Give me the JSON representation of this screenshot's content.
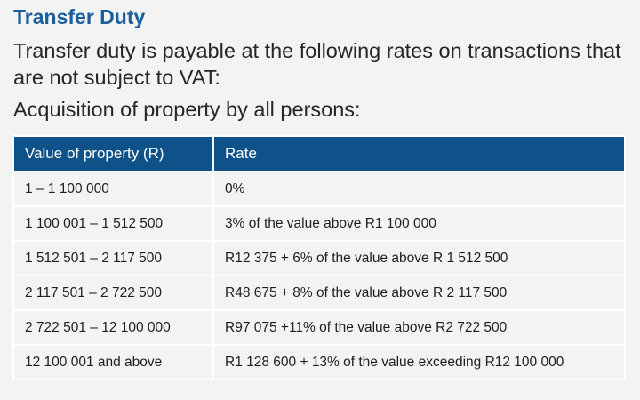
{
  "heading": "Transfer Duty",
  "intro": "Transfer duty is payable at the following rates on transactions that are not subject to VAT:",
  "subheading": "Acquisition of property by all persons:",
  "table": {
    "headers": [
      "Value of property (R)",
      "Rate"
    ],
    "rows": [
      [
        "1 – 1 100 000",
        "0%"
      ],
      [
        "1 100 001 – 1 512 500",
        "3% of the value above R1 100 000"
      ],
      [
        "1 512 501 – 2 117 500",
        "R12 375 + 6% of the value above R 1 512 500"
      ],
      [
        "2 117 501 – 2 722 500",
        "R48 675 + 8% of the value above R 2 117 500"
      ],
      [
        "2 722 501 – 12 100 000",
        "R97 075 +11% of the value above R2 722 500"
      ],
      [
        "12 100 001 and above",
        "R1 128 600 + 13% of the value exceeding R12 100 000"
      ]
    ]
  },
  "colors": {
    "heading": "#1a5e9c",
    "table_header_bg": "#0f5289"
  }
}
